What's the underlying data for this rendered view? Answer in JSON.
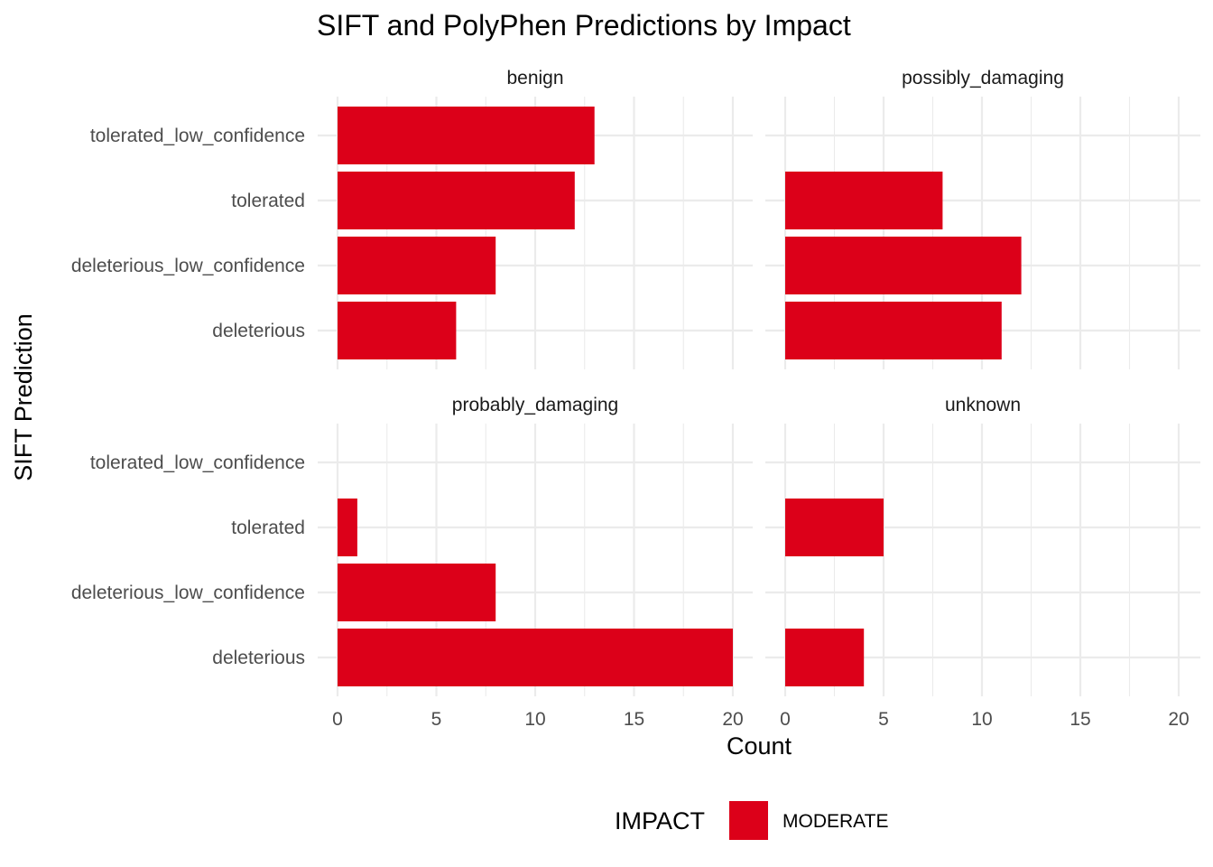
{
  "chart_data": {
    "type": "bar",
    "orientation": "horizontal",
    "title": "SIFT and PolyPhen Predictions by Impact",
    "xlabel": "Count",
    "ylabel": "SIFT Prediction",
    "xlim": [
      0,
      20
    ],
    "x_ticks": [
      0,
      5,
      10,
      15,
      20
    ],
    "grid": true,
    "categories": [
      "deleterious",
      "deleterious_low_confidence",
      "tolerated",
      "tolerated_low_confidence"
    ],
    "legend": {
      "title": "IMPACT",
      "placement": "bottom",
      "entries": [
        {
          "label": "MODERATE",
          "color": "#dc0019"
        }
      ]
    },
    "bar_color": "#dc0019",
    "facets": [
      {
        "label": "benign",
        "values": [
          6,
          8,
          12,
          13
        ]
      },
      {
        "label": "possibly_damaging",
        "values": [
          11,
          12,
          8,
          null
        ]
      },
      {
        "label": "probably_damaging",
        "values": [
          20,
          8,
          1,
          null
        ]
      },
      {
        "label": "unknown",
        "values": [
          4,
          null,
          5,
          null
        ]
      }
    ]
  }
}
